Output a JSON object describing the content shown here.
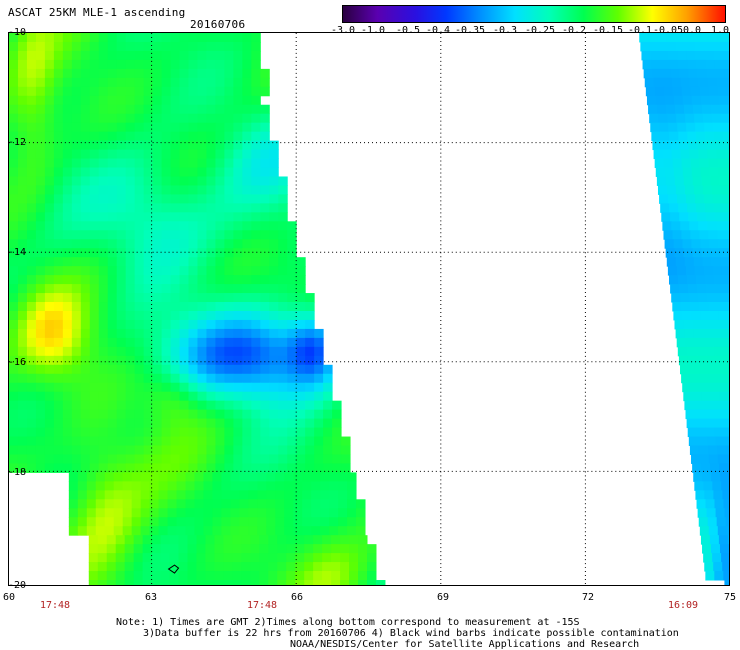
{
  "header": {
    "title": "ASCAT 25KM MLE-1 ascending",
    "date": "20160706"
  },
  "colorbar": {
    "labels": [
      "-3.0",
      "-1.0",
      "-0.5",
      "-0.4",
      "-0.35",
      "-0.3",
      "-0.25",
      "-0.2",
      "-0.15",
      "-0.1",
      "-0.05",
      "0.0",
      "1.0"
    ],
    "colors": [
      "#2a0040",
      "#5a00b0",
      "#1800e0",
      "#0048ff",
      "#0090ff",
      "#00d8ff",
      "#00ffc8",
      "#00ff60",
      "#50ff00",
      "#c0ff00",
      "#ffe000",
      "#ff9000",
      "#ff2000"
    ]
  },
  "axes": {
    "lat_labels": [
      "-10",
      "-12",
      "-14",
      "-16",
      "-18",
      "-20"
    ],
    "lon_labels": [
      "60",
      "63",
      "66",
      "69",
      "72",
      "75"
    ]
  },
  "swath_times": [
    "17:48",
    "17:48",
    "16:09"
  ],
  "notes": [
    "Note: 1) Times are GMT 2)Times along bottom correspond to measurement at -15S",
    "3)Data buffer is 22 hrs from 20160706 4) Black wind barbs indicate possible contamination",
    "NOAA/NESDIS/Center for Satellite Applications and Research"
  ]
}
